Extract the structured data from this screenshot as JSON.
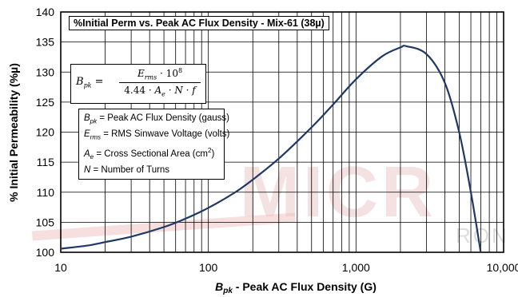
{
  "chart_data": {
    "type": "line",
    "title": "%Initial Perm vs. Peak AC Flux Density - Mix-61  (38µ)",
    "xlabel_sym": "B",
    "xlabel_sub": "pk",
    "xlabel_rest": " - Peak AC Flux Density (G)",
    "ylabel": "% Initial Permeability (%µ)",
    "x_scale": "log",
    "xlim": [
      10,
      10000
    ],
    "ylim": [
      100,
      140
    ],
    "x_ticks": [
      10,
      100,
      1000,
      10000
    ],
    "x_tick_labels": [
      "10",
      "100",
      "1,000",
      "10,000"
    ],
    "y_ticks": [
      100,
      105,
      110,
      115,
      120,
      125,
      130,
      135,
      140
    ],
    "y_tick_labels": [
      "100",
      "105",
      "110",
      "115",
      "120",
      "125",
      "130",
      "135",
      "140"
    ],
    "grid": true,
    "line_color": "#1f3864",
    "x": [
      10,
      15,
      20,
      30,
      50,
      70,
      100,
      150,
      200,
      300,
      500,
      700,
      1000,
      1500,
      2000,
      2200,
      3000,
      4000,
      5000,
      6000,
      7000
    ],
    "y": [
      100.6,
      101.1,
      101.7,
      102.6,
      104.2,
      105.6,
      107.4,
      109.9,
      112.1,
      115.6,
      120.8,
      124.6,
      128.8,
      132.6,
      134.1,
      134.3,
      133.0,
      128.2,
      120.0,
      110.0,
      100.0
    ]
  },
  "formula": {
    "lhs_sym": "B",
    "lhs_sub": "pk",
    "eq": " =",
    "num_sym": "E",
    "num_sub": "rms",
    "num_rest": " · 10",
    "num_sup": "8",
    "den_lead": "4.44 · ",
    "den_sym": "A",
    "den_sub": "e",
    "den_rest": " · N · f"
  },
  "legend": {
    "b_sym": "B",
    "b_sub": "pk",
    "b_text": " = Peak AC Flux Density (gauss)",
    "e_sym": "E",
    "e_sub": "rms",
    "e_text": " = RMS Sinwave Voltage (volts)",
    "a_sym": "A",
    "a_sub": "e",
    "a_text": " = Cross Sectional Area (cm",
    "a_sup": "2",
    "a_close": ")",
    "n_sym": "N",
    "n_text": " = Number of Turns"
  },
  "watermark": {
    "text": "MICR",
    "sub": "RON"
  }
}
